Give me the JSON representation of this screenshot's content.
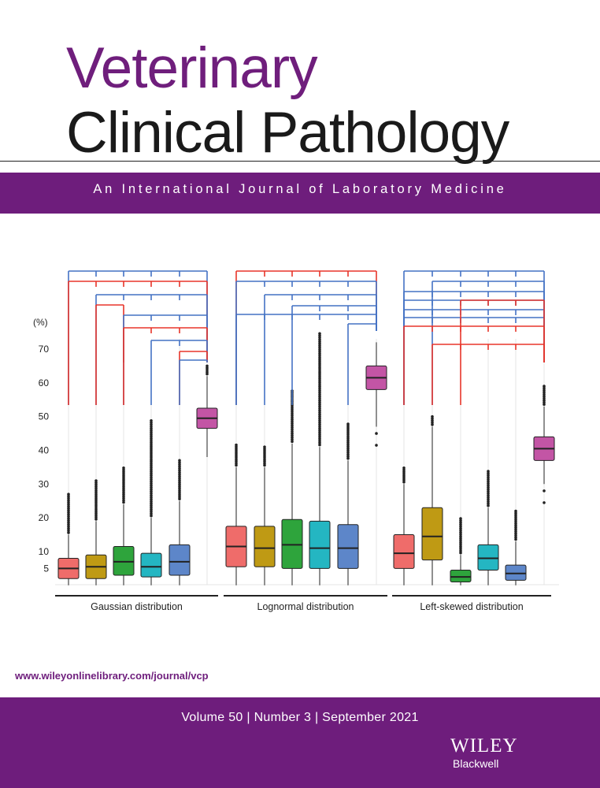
{
  "journal": {
    "title_line1": "Veterinary",
    "title_line2": "Clinical Pathology",
    "subtitle": "An International Journal of Laboratory Medicine",
    "url": "www.wileyonlinelibrary.com/journal/vcp",
    "issue": "Volume 50 | Number 3 | September 2021",
    "publisher_line1": "WILEY",
    "publisher_line2": "Blackwell"
  },
  "chart_data": {
    "type": "box",
    "ylabel": "(%)",
    "yticks": [
      5,
      10,
      20,
      30,
      40,
      50,
      60,
      70
    ],
    "ylim": [
      0,
      74
    ],
    "colors": [
      "#ef6c6a",
      "#bf9a14",
      "#2ea43c",
      "#24b6c2",
      "#5d86c9",
      "#c355a5"
    ],
    "comparison_colors": [
      "#4472c4",
      "#e8352a"
    ],
    "groups": [
      {
        "label": "Gaussian distribution",
        "boxes": [
          {
            "q1": 2.0,
            "median": 5.0,
            "q3": 8.0,
            "min": 0.0,
            "max": 15.0,
            "out_max": 27.0
          },
          {
            "q1": 2.0,
            "median": 5.5,
            "q3": 9.0,
            "min": 0.0,
            "max": 19.0,
            "out_max": 31.0
          },
          {
            "q1": 3.0,
            "median": 7.0,
            "q3": 11.5,
            "min": 0.0,
            "max": 24.0,
            "out_max": 35.0
          },
          {
            "q1": 2.5,
            "median": 5.5,
            "q3": 9.5,
            "min": 0.0,
            "max": 20.0,
            "out_max": 49.0
          },
          {
            "q1": 3.0,
            "median": 7.0,
            "q3": 12.0,
            "min": 0.0,
            "max": 25.0,
            "out_max": 37.0
          },
          {
            "q1": 46.5,
            "median": 49.5,
            "q3": 52.5,
            "min": 38.0,
            "max": 62.0,
            "out_max": 65.0
          }
        ]
      },
      {
        "label": "Lognormal distribution",
        "boxes": [
          {
            "q1": 5.5,
            "median": 11.5,
            "q3": 17.5,
            "min": 0.0,
            "max": 35.0,
            "out_max": 42.0
          },
          {
            "q1": 5.5,
            "median": 11.0,
            "q3": 17.5,
            "min": 0.0,
            "max": 35.0,
            "out_max": 41.0
          },
          {
            "q1": 5.0,
            "median": 12.0,
            "q3": 19.5,
            "min": 0.0,
            "max": 42.0,
            "out_max": 58.0
          },
          {
            "q1": 5.0,
            "median": 11.0,
            "q3": 19.0,
            "min": 0.0,
            "max": 41.0,
            "out_max": 75.0
          },
          {
            "q1": 5.0,
            "median": 11.0,
            "q3": 18.0,
            "min": 0.0,
            "max": 37.0,
            "out_max": 48.0
          },
          {
            "q1": 58.0,
            "median": 61.5,
            "q3": 65.0,
            "min": 47.0,
            "max": 72.0,
            "out_max": 60.0,
            "out_min": 39.0
          }
        ]
      },
      {
        "label": "Left-skewed distribution",
        "boxes": [
          {
            "q1": 5.0,
            "median": 9.5,
            "q3": 15.0,
            "min": 0.0,
            "max": 30.0,
            "out_max": 35.0
          },
          {
            "q1": 7.5,
            "median": 14.5,
            "q3": 23.0,
            "min": 0.0,
            "max": 47.0,
            "out_max": 50.0
          },
          {
            "q1": 1.0,
            "median": 2.5,
            "q3": 4.5,
            "min": 0.0,
            "max": 9.0,
            "out_max": 20.0
          },
          {
            "q1": 4.5,
            "median": 8.0,
            "q3": 12.0,
            "min": 0.0,
            "max": 23.0,
            "out_max": 34.0
          },
          {
            "q1": 1.5,
            "median": 3.5,
            "q3": 6.0,
            "min": 0.0,
            "max": 13.0,
            "out_max": 22.0
          },
          {
            "q1": 37.0,
            "median": 40.5,
            "q3": 44.0,
            "min": 30.0,
            "max": 53.0,
            "out_max": 59.5,
            "out_min": 24.5
          }
        ]
      }
    ]
  }
}
